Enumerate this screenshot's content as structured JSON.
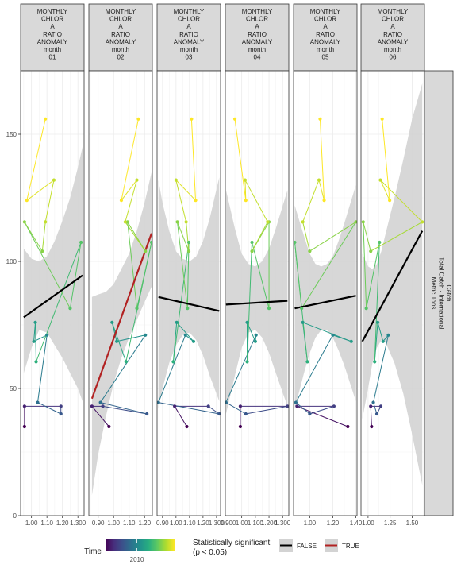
{
  "chart_data": {
    "type": "scatter",
    "title": "",
    "ylabel": "",
    "xlabel": "",
    "ylim": [
      0,
      175
    ],
    "y_ticks": [
      0,
      50,
      100,
      150
    ],
    "strip_right": [
      "Catch",
      "Total Catch - International",
      "Metric Tons"
    ],
    "grid": true,
    "legend": {
      "placement": "bottom",
      "time_title": "Time",
      "time_tick": "2010",
      "time_range": [
        2005,
        2016
      ],
      "sig_title": [
        "Statistically significant",
        "(p < 0.05)"
      ],
      "sig_false": "FALSE",
      "sig_true": "TRUE"
    },
    "colors": {
      "sig_false": "#000000",
      "sig_true": "#b22222",
      "ribbon": "#d3d3d3",
      "strip_bg": "#d9d9d9",
      "viridis": [
        "#440154",
        "#472f7d",
        "#3b528b",
        "#2c728e",
        "#21918c",
        "#28ae80",
        "#5ec962",
        "#addc30",
        "#fde725"
      ]
    },
    "panels": [
      {
        "strip": [
          "MONTHLY",
          "CHLOR",
          "A",
          "RATIO",
          "ANOMALY",
          "month",
          "01"
        ],
        "xlim": [
          0.93,
          1.34
        ],
        "x_ticks": [
          1.0,
          1.1,
          1.2,
          1.3
        ],
        "x_tick_labels": [
          "1.00",
          "1.10",
          "1.20",
          "1.300"
        ],
        "fit": {
          "x": [
            0.95,
            1.33
          ],
          "y": [
            78.0,
            94.5
          ],
          "significant": false
        },
        "ribbon": {
          "x": [
            0.95,
            1.0,
            1.05,
            1.1,
            1.15,
            1.2,
            1.25,
            1.3,
            1.33
          ],
          "lower": [
            56,
            66,
            73,
            72,
            67,
            62,
            56,
            50,
            45
          ],
          "upper": [
            105,
            101,
            100,
            102,
            108,
            116,
            125,
            137,
            145
          ]
        },
        "points": [
          {
            "x": 0.955,
            "y": 35.0,
            "year": 2005
          },
          {
            "x": 0.955,
            "y": 43.0,
            "year": 2006
          },
          {
            "x": 1.19,
            "y": 43.0,
            "year": 2007
          },
          {
            "x": 1.19,
            "y": 40.0,
            "year": 2008
          },
          {
            "x": 1.04,
            "y": 44.5,
            "year": 2009
          },
          {
            "x": 1.1,
            "y": 71.0,
            "year": 2010
          },
          {
            "x": 1.015,
            "y": 68.5,
            "year": 2011
          },
          {
            "x": 1.025,
            "y": 76.0,
            "year": 2011
          },
          {
            "x": 1.03,
            "y": 60.5,
            "year": 2012
          },
          {
            "x": 1.32,
            "y": 107.5,
            "year": 2013
          },
          {
            "x": 1.25,
            "y": 81.5,
            "year": 2013
          },
          {
            "x": 0.955,
            "y": 115.5,
            "year": 2014
          },
          {
            "x": 1.07,
            "y": 104.0,
            "year": 2014
          },
          {
            "x": 1.09,
            "y": 115.5,
            "year": 2015
          },
          {
            "x": 1.145,
            "y": 132.0,
            "year": 2015
          },
          {
            "x": 0.97,
            "y": 124.0,
            "year": 2016
          },
          {
            "x": 1.09,
            "y": 156.0,
            "year": 2016
          }
        ]
      },
      {
        "strip": [
          "MONTHLY",
          "CHLOR",
          "A",
          "RATIO",
          "ANOMALY",
          "month",
          "02"
        ],
        "xlim": [
          0.84,
          1.25
        ],
        "x_ticks": [
          0.9,
          1.0,
          1.1,
          1.2
        ],
        "x_tick_labels": [
          "0.90",
          "1.00",
          "1.10",
          "1.20"
        ],
        "fit": {
          "x": [
            0.86,
            1.245
          ],
          "y": [
            46.0,
            111.0
          ],
          "significant": true
        },
        "ribbon": {
          "x": [
            0.86,
            0.9,
            0.95,
            1.0,
            1.05,
            1.1,
            1.15,
            1.2,
            1.245
          ],
          "lower": [
            8,
            24,
            39,
            52,
            62,
            70,
            77,
            84,
            90
          ],
          "upper": [
            86,
            87,
            88,
            91,
            97,
            103,
            112,
            123,
            135
          ]
        },
        "points": [
          {
            "x": 0.97,
            "y": 35.0,
            "year": 2005
          },
          {
            "x": 0.86,
            "y": 43.0,
            "year": 2006
          },
          {
            "x": 0.93,
            "y": 43.0,
            "year": 2007
          },
          {
            "x": 1.215,
            "y": 40.0,
            "year": 2008
          },
          {
            "x": 0.915,
            "y": 44.5,
            "year": 2009
          },
          {
            "x": 1.205,
            "y": 71.0,
            "year": 2010
          },
          {
            "x": 1.02,
            "y": 68.5,
            "year": 2011
          },
          {
            "x": 0.99,
            "y": 76.0,
            "year": 2011
          },
          {
            "x": 1.08,
            "y": 60.5,
            "year": 2012
          },
          {
            "x": 1.245,
            "y": 107.5,
            "year": 2013
          },
          {
            "x": 1.15,
            "y": 81.5,
            "year": 2013
          },
          {
            "x": 1.09,
            "y": 115.5,
            "year": 2014
          },
          {
            "x": 1.205,
            "y": 104.0,
            "year": 2014
          },
          {
            "x": 1.075,
            "y": 115.5,
            "year": 2015
          },
          {
            "x": 1.15,
            "y": 132.0,
            "year": 2015
          },
          {
            "x": 1.05,
            "y": 124.0,
            "year": 2016
          },
          {
            "x": 1.16,
            "y": 156.0,
            "year": 2016
          }
        ]
      },
      {
        "strip": [
          "MONTHLY",
          "CHLOR",
          "A",
          "RATIO",
          "ANOMALY",
          "month",
          "03"
        ],
        "xlim": [
          0.86,
          1.33
        ],
        "x_ticks": [
          0.9,
          1.0,
          1.1,
          1.2,
          1.3
        ],
        "x_tick_labels": [
          "0.90",
          "1.00",
          "1.10",
          "1.20",
          "1.300"
        ],
        "fit": {
          "x": [
            0.87,
            1.32
          ],
          "y": [
            86.0,
            80.5
          ],
          "significant": false
        },
        "ribbon": {
          "x": [
            0.87,
            0.9,
            0.95,
            1.0,
            1.05,
            1.1,
            1.15,
            1.2,
            1.25,
            1.32
          ],
          "lower": [
            42,
            50,
            60,
            67,
            71,
            72,
            69,
            63,
            55,
            45
          ],
          "upper": [
            132,
            123,
            112,
            104,
            101,
            100,
            102,
            108,
            117,
            133
          ]
        },
        "points": [
          {
            "x": 1.08,
            "y": 35.0,
            "year": 2005
          },
          {
            "x": 0.99,
            "y": 43.0,
            "year": 2006
          },
          {
            "x": 1.24,
            "y": 43.0,
            "year": 2007
          },
          {
            "x": 1.32,
            "y": 40.0,
            "year": 2008
          },
          {
            "x": 0.87,
            "y": 44.5,
            "year": 2009
          },
          {
            "x": 1.07,
            "y": 71.0,
            "year": 2010
          },
          {
            "x": 1.13,
            "y": 68.5,
            "year": 2011
          },
          {
            "x": 1.005,
            "y": 76.0,
            "year": 2011
          },
          {
            "x": 0.98,
            "y": 60.5,
            "year": 2012
          },
          {
            "x": 1.095,
            "y": 107.5,
            "year": 2013
          },
          {
            "x": 1.085,
            "y": 81.5,
            "year": 2013
          },
          {
            "x": 1.01,
            "y": 115.5,
            "year": 2014
          },
          {
            "x": 1.095,
            "y": 104.0,
            "year": 2014
          },
          {
            "x": 1.075,
            "y": 115.5,
            "year": 2015
          },
          {
            "x": 1.0,
            "y": 132.0,
            "year": 2015
          },
          {
            "x": 1.145,
            "y": 124.0,
            "year": 2016
          },
          {
            "x": 1.115,
            "y": 156.0,
            "year": 2016
          }
        ]
      },
      {
        "strip": [
          "MONTHLY",
          "CHLOR",
          "A",
          "RATIO",
          "ANOMALY",
          "month",
          "04"
        ],
        "xlim": [
          0.88,
          1.345
        ],
        "x_ticks": [
          0.9,
          1.0,
          1.1,
          1.2,
          1.3
        ],
        "x_tick_labels": [
          "0.900",
          "1.00",
          "1.100",
          "1.200",
          "1.300"
        ],
        "fit": {
          "x": [
            0.885,
            1.335
          ],
          "y": [
            83.0,
            84.5
          ],
          "significant": false
        },
        "ribbon": {
          "x": [
            0.885,
            0.95,
            1.0,
            1.05,
            1.1,
            1.15,
            1.2,
            1.25,
            1.335
          ],
          "lower": [
            40,
            55,
            66,
            72,
            73,
            70,
            64,
            56,
            43
          ],
          "upper": [
            128,
            113,
            103,
            99,
            98,
            100,
            105,
            113,
            128
          ]
        },
        "points": [
          {
            "x": 0.99,
            "y": 35.0,
            "year": 2005
          },
          {
            "x": 0.99,
            "y": 43.0,
            "year": 2006
          },
          {
            "x": 1.335,
            "y": 43.0,
            "year": 2007
          },
          {
            "x": 1.03,
            "y": 40.0,
            "year": 2008
          },
          {
            "x": 0.885,
            "y": 44.5,
            "year": 2009
          },
          {
            "x": 1.105,
            "y": 71.0,
            "year": 2010
          },
          {
            "x": 1.1,
            "y": 68.5,
            "year": 2011
          },
          {
            "x": 1.04,
            "y": 76.0,
            "year": 2011
          },
          {
            "x": 1.04,
            "y": 60.5,
            "year": 2012
          },
          {
            "x": 1.075,
            "y": 107.5,
            "year": 2013
          },
          {
            "x": 1.2,
            "y": 81.5,
            "year": 2013
          },
          {
            "x": 1.2,
            "y": 115.5,
            "year": 2014
          },
          {
            "x": 1.075,
            "y": 104.0,
            "year": 2014
          },
          {
            "x": 1.19,
            "y": 115.5,
            "year": 2015
          },
          {
            "x": 1.025,
            "y": 132.0,
            "year": 2015
          },
          {
            "x": 1.03,
            "y": 124.0,
            "year": 2016
          },
          {
            "x": 0.95,
            "y": 156.0,
            "year": 2016
          }
        ]
      },
      {
        "strip": [
          "MONTHLY",
          "CHLOR",
          "A",
          "RATIO",
          "ANOMALY",
          "month",
          "05"
        ],
        "xlim": [
          0.86,
          1.41
        ],
        "x_ticks": [
          1.0,
          1.2,
          1.4
        ],
        "x_tick_labels": [
          "1.00",
          "1.20",
          "1.40"
        ],
        "fit": {
          "x": [
            0.87,
            1.4
          ],
          "y": [
            81.5,
            86.5
          ],
          "significant": false
        },
        "ribbon": {
          "x": [
            0.87,
            0.95,
            1.0,
            1.05,
            1.1,
            1.15,
            1.2,
            1.25,
            1.3,
            1.4
          ],
          "lower": [
            42,
            56,
            64,
            70,
            73,
            73,
            70,
            65,
            59,
            45
          ],
          "upper": [
            122,
            110,
            103,
            99,
            98,
            99,
            102,
            108,
            115,
            130
          ]
        },
        "points": [
          {
            "x": 1.33,
            "y": 35.0,
            "year": 2005
          },
          {
            "x": 0.89,
            "y": 43.0,
            "year": 2006
          },
          {
            "x": 1.21,
            "y": 43.0,
            "year": 2007
          },
          {
            "x": 1.0,
            "y": 40.0,
            "year": 2008
          },
          {
            "x": 0.88,
            "y": 44.5,
            "year": 2009
          },
          {
            "x": 1.2,
            "y": 71.0,
            "year": 2010
          },
          {
            "x": 1.36,
            "y": 68.5,
            "year": 2011
          },
          {
            "x": 0.94,
            "y": 76.0,
            "year": 2011
          },
          {
            "x": 0.98,
            "y": 60.5,
            "year": 2012
          },
          {
            "x": 0.87,
            "y": 107.5,
            "year": 2013
          },
          {
            "x": 0.93,
            "y": 81.5,
            "year": 2013
          },
          {
            "x": 1.4,
            "y": 115.5,
            "year": 2014
          },
          {
            "x": 1.0,
            "y": 104.0,
            "year": 2014
          },
          {
            "x": 0.94,
            "y": 115.5,
            "year": 2015
          },
          {
            "x": 1.08,
            "y": 132.0,
            "year": 2015
          },
          {
            "x": 1.125,
            "y": 124.0,
            "year": 2016
          },
          {
            "x": 1.09,
            "y": 156.0,
            "year": 2016
          }
        ]
      },
      {
        "strip": [
          "MONTHLY",
          "CHLOR",
          "A",
          "RATIO",
          "ANOMALY",
          "month",
          "06"
        ],
        "xlim": [
          0.92,
          1.64
        ],
        "x_ticks": [
          1.0,
          1.25,
          1.5
        ],
        "x_tick_labels": [
          "1.00",
          "1.25",
          "1.50"
        ],
        "fit": {
          "x": [
            0.935,
            1.615
          ],
          "y": [
            68.5,
            112.0
          ],
          "significant": false
        },
        "ribbon": {
          "x": [
            0.935,
            1.0,
            1.05,
            1.1,
            1.15,
            1.2,
            1.3,
            1.4,
            1.5,
            1.615
          ],
          "lower": [
            38,
            50,
            60,
            66,
            69,
            68,
            60,
            48,
            32,
            12
          ],
          "upper": [
            103,
            98,
            97,
            99,
            104,
            111,
            125,
            140,
            156,
            170
          ]
        },
        "points": [
          {
            "x": 1.04,
            "y": 35.0,
            "year": 2005
          },
          {
            "x": 1.03,
            "y": 43.0,
            "year": 2006
          },
          {
            "x": 1.145,
            "y": 43.0,
            "year": 2007
          },
          {
            "x": 1.1,
            "y": 40.0,
            "year": 2008
          },
          {
            "x": 1.06,
            "y": 44.5,
            "year": 2009
          },
          {
            "x": 1.23,
            "y": 71.0,
            "year": 2010
          },
          {
            "x": 1.17,
            "y": 68.5,
            "year": 2011
          },
          {
            "x": 1.11,
            "y": 76.0,
            "year": 2011
          },
          {
            "x": 1.075,
            "y": 60.5,
            "year": 2012
          },
          {
            "x": 1.13,
            "y": 107.5,
            "year": 2013
          },
          {
            "x": 0.98,
            "y": 81.5,
            "year": 2013
          },
          {
            "x": 0.945,
            "y": 115.5,
            "year": 2014
          },
          {
            "x": 1.03,
            "y": 104.0,
            "year": 2014
          },
          {
            "x": 1.615,
            "y": 115.5,
            "year": 2015
          },
          {
            "x": 1.14,
            "y": 132.0,
            "year": 2015
          },
          {
            "x": 1.245,
            "y": 124.0,
            "year": 2016
          },
          {
            "x": 1.16,
            "y": 156.0,
            "year": 2016
          }
        ]
      }
    ]
  }
}
